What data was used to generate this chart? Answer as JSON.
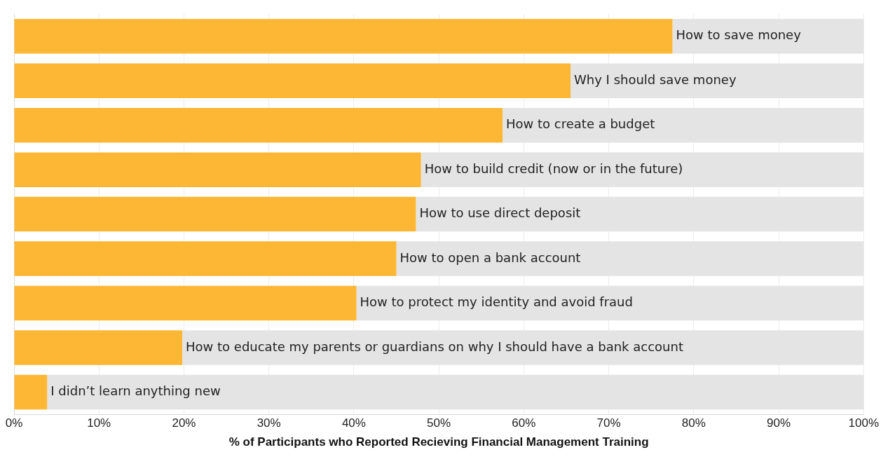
{
  "chart_data": {
    "type": "bar",
    "orientation": "horizontal",
    "xlabel": "% of Participants who Reported Recieving Financial Management Training",
    "categories": [
      "How to save money",
      "Why I should save money",
      "How to create a budget",
      "How to build credit (now or in the future)",
      "How to use direct deposit",
      "How to open a bank account",
      "How to protect my identity and avoid fraud",
      "How to educate my parents or guardians on why I should have a bank account",
      "I didn’t learn anything new"
    ],
    "series": [
      {
        "color": "#fdb734",
        "values": [
          77.5,
          65.5,
          57.5,
          47.9,
          47.3,
          45.0,
          40.3,
          19.8,
          3.9
        ]
      },
      {
        "color": "#e4e4e4",
        "values": [
          22.5,
          34.5,
          42.5,
          52.1,
          52.7,
          55.0,
          59.7,
          80.2,
          96.1
        ]
      }
    ],
    "xlim": [
      0,
      100
    ],
    "xticks": [
      {
        "value": 0,
        "label": "0%"
      },
      {
        "value": 10,
        "label": "10%"
      },
      {
        "value": 20,
        "label": "20%"
      },
      {
        "value": 30,
        "label": "30%"
      },
      {
        "value": 40,
        "label": "40%"
      },
      {
        "value": 50,
        "label": "50%"
      },
      {
        "value": 60,
        "label": "60%"
      },
      {
        "value": 70,
        "label": "70%"
      },
      {
        "value": 80,
        "label": "80%"
      },
      {
        "value": 90,
        "label": "90%"
      },
      {
        "value": 100,
        "label": "100%"
      }
    ],
    "stacked": true,
    "grid": "x",
    "tick_labels": "x",
    "legend": false
  }
}
